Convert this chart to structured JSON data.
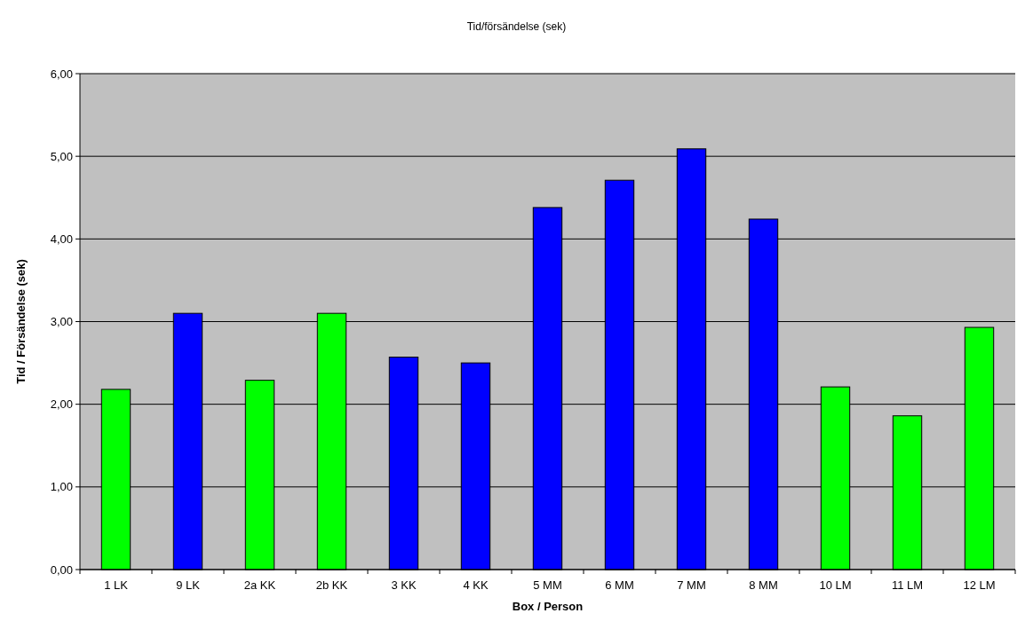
{
  "chart_data": {
    "type": "bar",
    "title": "Tid/försändelse (sek)",
    "xlabel": "Box / Person",
    "ylabel": "Tid / Försändelse (sek)",
    "categories": [
      "1 LK",
      "9 LK",
      "2a KK",
      "2b KK",
      "3 KK",
      "4 KK",
      "5 MM",
      "6 MM",
      "7 MM",
      "8 MM",
      "10 LM",
      "11 LM",
      "12 LM"
    ],
    "values": [
      2.18,
      3.1,
      2.29,
      3.1,
      2.57,
      2.5,
      4.38,
      4.71,
      5.09,
      4.24,
      2.21,
      1.86,
      2.93
    ],
    "colors": [
      "#00ff00",
      "#0000ff",
      "#00ff00",
      "#00ff00",
      "#0000ff",
      "#0000ff",
      "#0000ff",
      "#0000ff",
      "#0000ff",
      "#0000ff",
      "#00ff00",
      "#00ff00",
      "#00ff00"
    ],
    "ylim": [
      0,
      6
    ],
    "yticks": [
      {
        "value": 0,
        "label": "0,00"
      },
      {
        "value": 1,
        "label": "1,00"
      },
      {
        "value": 2,
        "label": "2,00"
      },
      {
        "value": 3,
        "label": "3,00"
      },
      {
        "value": 4,
        "label": "4,00"
      },
      {
        "value": 5,
        "label": "5,00"
      },
      {
        "value": 6,
        "label": "6,00"
      }
    ],
    "grid": "y"
  }
}
